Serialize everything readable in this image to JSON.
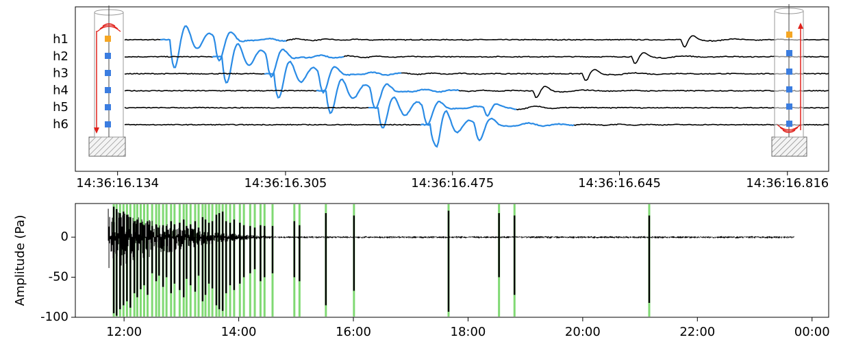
{
  "chart_data": [
    {
      "type": "waveform",
      "categories": [
        "h1",
        "h2",
        "h3",
        "h4",
        "h5",
        "h6"
      ],
      "color": "#000000",
      "direct_color": "#2b8ce6",
      "xlim": [
        16.091,
        16.858
      ],
      "xticks": [
        {
          "value": 16.134,
          "label": "14:36:16.134"
        },
        {
          "value": 16.305,
          "label": "14:36:16.305"
        },
        {
          "value": 16.475,
          "label": "14:36:16.475"
        },
        {
          "value": 16.645,
          "label": "14:36:16.645"
        },
        {
          "value": 16.816,
          "label": "14:36:16.816"
        }
      ]
    },
    {
      "type": "spike",
      "ylabel": "Amplitude (Pa)",
      "color": "#000000",
      "event_color": "#55cc44",
      "xlim": [
        11.15,
        24.29
      ],
      "xticks": [
        {
          "value": 12,
          "label": "12:00"
        },
        {
          "value": 14,
          "label": "14:00"
        },
        {
          "value": 16,
          "label": "16:00"
        },
        {
          "value": 18,
          "label": "18:00"
        },
        {
          "value": 20,
          "label": "20:00"
        },
        {
          "value": 22,
          "label": "22:00"
        },
        {
          "value": 24,
          "label": "00:00"
        }
      ],
      "ylim": [
        -100,
        42
      ],
      "yticks": [
        -100,
        -50,
        0
      ],
      "x": [
        11.82,
        11.87,
        11.93,
        11.99,
        12.05,
        12.11,
        12.18,
        12.23,
        12.29,
        12.35,
        12.41,
        12.49,
        12.56,
        12.61,
        12.68,
        12.74,
        12.82,
        12.88,
        12.97,
        13.04,
        13.09,
        13.16,
        13.24,
        13.3,
        13.37,
        13.42,
        13.48,
        13.54,
        13.61,
        13.66,
        13.72,
        13.78,
        13.85,
        13.92,
        14.02,
        14.09,
        14.2,
        14.28,
        14.38,
        14.45,
        14.59,
        14.97,
        15.06,
        15.52,
        16.01,
        17.66,
        18.54,
        18.81,
        21.16
      ],
      "values": [
        -95,
        -98,
        -90,
        -85,
        -80,
        -88,
        -70,
        -75,
        -65,
        -60,
        -72,
        -45,
        -55,
        -48,
        -62,
        -50,
        -70,
        -58,
        -66,
        -75,
        -52,
        -60,
        -68,
        -48,
        -80,
        -72,
        -58,
        -64,
        -85,
        -90,
        -92,
        -70,
        -60,
        -66,
        -58,
        -50,
        -45,
        -40,
        -55,
        -50,
        -45,
        -50,
        -55,
        -85,
        -67,
        -93,
        -50,
        -72,
        -82
      ],
      "peaks": [
        38,
        35,
        30,
        32,
        28,
        25,
        20,
        22,
        18,
        15,
        20,
        14,
        16,
        12,
        15,
        14,
        20,
        16,
        18,
        22,
        14,
        16,
        20,
        12,
        25,
        22,
        18,
        20,
        28,
        30,
        32,
        20,
        18,
        22,
        18,
        15,
        14,
        12,
        15,
        14,
        14,
        20,
        15,
        30,
        27,
        33,
        30,
        27,
        27
      ]
    }
  ]
}
